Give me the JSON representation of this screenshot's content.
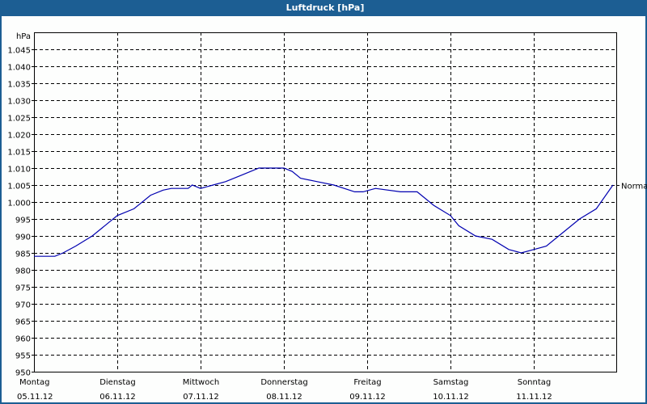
{
  "window": {
    "title": "Luftdruck [hPa]"
  },
  "colors": {
    "titlebar": "#1c5e93",
    "line": "#0000b0",
    "grid": "#000000",
    "background": "#fdfefd"
  },
  "chart_data": {
    "type": "line",
    "title": "Luftdruck [hPa]",
    "xlabel": "",
    "ylabel": "hPa",
    "ylim": [
      950,
      1050
    ],
    "ytick_step": 5,
    "y_ticks": [
      "950",
      "955",
      "960",
      "965",
      "970",
      "975",
      "980",
      "985",
      "990",
      "995",
      "1.000",
      "1.005",
      "1.010",
      "1.015",
      "1.020",
      "1.025",
      "1.030",
      "1.035",
      "1.040",
      "1.045"
    ],
    "grid": true,
    "grid_style": "dashed",
    "reference_line": {
      "label": "Normal",
      "value": 1005
    },
    "categories": [
      {
        "day": "Montag",
        "date": "05.11.12"
      },
      {
        "day": "Dienstag",
        "date": "06.11.12"
      },
      {
        "day": "Mittwoch",
        "date": "07.11.12"
      },
      {
        "day": "Donnerstag",
        "date": "08.11.12"
      },
      {
        "day": "Freitag",
        "date": "09.11.12"
      },
      {
        "day": "Samstag",
        "date": "10.11.12"
      },
      {
        "day": "Sonntag",
        "date": "11.11.12"
      }
    ],
    "series": [
      {
        "name": "Luftdruck",
        "x_days": [
          0.0,
          0.25,
          0.35,
          0.5,
          0.7,
          0.9,
          1.0,
          1.2,
          1.4,
          1.55,
          1.65,
          1.85,
          1.9,
          2.0,
          2.15,
          2.3,
          2.5,
          2.7,
          2.9,
          3.0,
          3.1,
          3.2,
          3.4,
          3.6,
          3.85,
          3.95,
          4.1,
          4.4,
          4.6,
          4.8,
          5.0,
          5.1,
          5.3,
          5.5,
          5.7,
          5.85,
          6.0,
          6.15,
          6.3,
          6.55,
          6.75,
          6.95
        ],
        "values": [
          984,
          984,
          985,
          987,
          990,
          994,
          996,
          998,
          1002,
          1003.5,
          1004,
          1004,
          1005,
          1004,
          1005,
          1006,
          1008,
          1010,
          1010,
          1010,
          1009,
          1007,
          1006,
          1005,
          1003,
          1003,
          1004,
          1003,
          1003,
          999,
          996,
          993,
          990,
          989,
          986,
          985,
          986,
          987,
          990,
          995,
          998,
          1005
        ]
      }
    ]
  }
}
